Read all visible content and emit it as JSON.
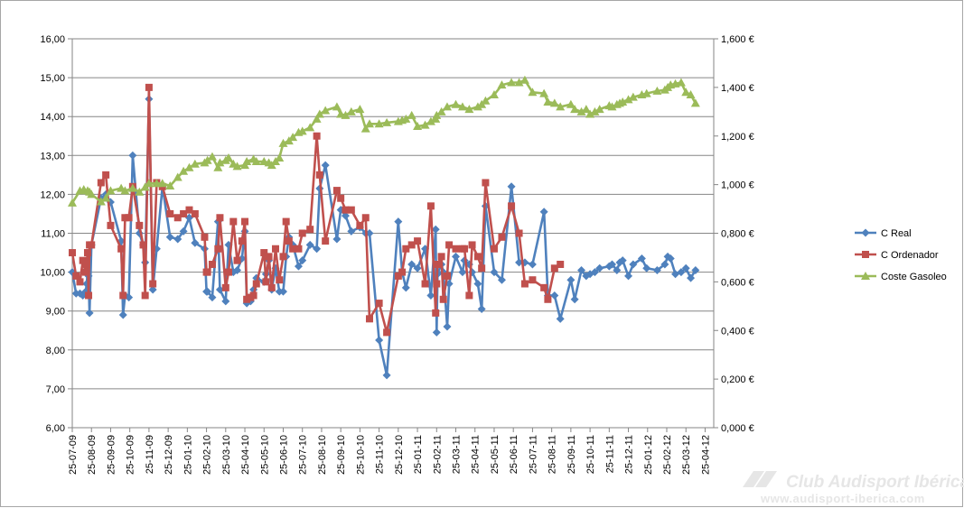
{
  "chart_data": {
    "type": "line",
    "title": "",
    "xlabel": "",
    "ylabel": "",
    "ylim": [
      6,
      16
    ],
    "y_ticks": [
      "6,00",
      "7,00",
      "8,00",
      "9,00",
      "10,00",
      "11,00",
      "12,00",
      "13,00",
      "14,00",
      "15,00",
      "16,00"
    ],
    "y2lim": [
      0,
      1.6
    ],
    "y2_ticks": [
      "0,000 €",
      "0,200 €",
      "0,400 €",
      "0,600 €",
      "0,800 €",
      "1,000 €",
      "1,200 €",
      "1,400 €",
      "1,600 €"
    ],
    "x_ticks": [
      "25-07-09",
      "25-08-09",
      "25-09-09",
      "25-10-09",
      "25-11-09",
      "25-12-09",
      "25-01-10",
      "25-02-10",
      "25-03-10",
      "25-04-10",
      "25-05-10",
      "25-06-10",
      "25-07-10",
      "25-08-10",
      "25-09-10",
      "25-10-10",
      "25-11-10",
      "25-12-10",
      "25-01-11",
      "25-02-11",
      "25-03-11",
      "25-04-11",
      "25-05-11",
      "25-06-11",
      "25-07-11",
      "25-08-11",
      "25-09-11",
      "25-10-11",
      "25-11-11",
      "25-12-11",
      "25-01-12",
      "25-02-12",
      "25-03-12",
      "25-04-12"
    ],
    "x_range": [
      0,
      33.45
    ],
    "grid": "horizontal",
    "legend_position": "right",
    "series": [
      {
        "name": "C Real",
        "axis": "left",
        "color": "#4f81bd",
        "marker": "diamond",
        "x": [
          0.0,
          0.2,
          0.4,
          0.55,
          0.7,
          0.75,
          0.8,
          0.85,
          0.9,
          1.0,
          1.5,
          1.75,
          2.0,
          2.55,
          2.65,
          2.75,
          2.95,
          3.15,
          3.5,
          3.7,
          3.8,
          4.0,
          4.2,
          4.4,
          4.7,
          5.1,
          5.5,
          5.8,
          6.1,
          6.4,
          6.9,
          7.0,
          7.05,
          7.3,
          7.6,
          7.7,
          8.0,
          8.15,
          8.4,
          8.6,
          8.85,
          9.0,
          9.1,
          9.3,
          9.45,
          9.6,
          10.0,
          10.1,
          10.25,
          10.4,
          10.6,
          10.8,
          11.0,
          11.15,
          11.3,
          11.5,
          11.8,
          12.0,
          12.4,
          12.75,
          12.9,
          13.2,
          13.8,
          14.0,
          14.25,
          14.55,
          15.0,
          15.3,
          15.5,
          16.0,
          16.4,
          17.0,
          17.2,
          17.4,
          17.7,
          18.0,
          18.4,
          18.7,
          18.95,
          19.0,
          19.05,
          19.25,
          19.35,
          19.55,
          19.65,
          20.0,
          20.35,
          20.45,
          20.7,
          20.85,
          21.15,
          21.35,
          21.55,
          22.0,
          22.4,
          22.9,
          23.3,
          23.6,
          24.0,
          24.6,
          24.8,
          25.15,
          25.45,
          26.0,
          26.2,
          26.55,
          26.8,
          27.0,
          27.25,
          27.5,
          28.0,
          28.15,
          28.4,
          28.55,
          28.7,
          29.0,
          29.25,
          29.7,
          29.95,
          30.5,
          30.9,
          31.05,
          31.2,
          31.45,
          31.75,
          32.0,
          32.25,
          32.5
        ],
        "y": [
          10.0,
          9.45,
          9.45,
          9.4,
          9.5,
          9.7,
          10.0,
          9.9,
          8.95,
          10.7,
          11.9,
          12.0,
          11.8,
          10.8,
          8.9,
          9.4,
          9.35,
          13.0,
          11.0,
          10.7,
          10.25,
          14.45,
          9.55,
          10.6,
          12.2,
          10.9,
          10.85,
          11.05,
          11.4,
          10.75,
          10.6,
          9.5,
          9.5,
          9.35,
          11.3,
          9.55,
          9.25,
          10.7,
          10.0,
          10.05,
          10.35,
          11.05,
          9.2,
          9.25,
          9.55,
          9.85,
          9.75,
          9.95,
          10.3,
          9.55,
          10.1,
          9.5,
          9.5,
          10.4,
          10.9,
          10.7,
          10.15,
          10.3,
          10.7,
          10.6,
          12.15,
          12.75,
          10.85,
          11.6,
          11.45,
          11.05,
          11.15,
          11.0,
          11.0,
          8.25,
          7.35,
          11.3,
          10.0,
          9.6,
          10.2,
          10.1,
          10.6,
          9.4,
          11.1,
          8.45,
          9.95,
          10.2,
          10.0,
          8.6,
          9.7,
          10.4,
          10.0,
          10.3,
          10.2,
          10.0,
          9.7,
          9.05,
          11.7,
          10.0,
          9.8,
          12.2,
          10.25,
          10.25,
          10.2,
          11.55,
          9.4,
          9.4,
          8.8,
          9.8,
          9.3,
          10.05,
          9.9,
          9.95,
          10.0,
          10.1,
          10.15,
          10.2,
          10.05,
          10.25,
          10.3,
          9.9,
          10.2,
          10.35,
          10.1,
          10.05,
          10.2,
          10.4,
          10.35,
          9.95,
          10.0,
          10.1,
          9.85,
          10.05
        ]
      },
      {
        "name": "C Ordenador",
        "axis": "left",
        "color": "#c0504d",
        "marker": "square",
        "x": [
          0.0,
          0.2,
          0.4,
          0.55,
          0.7,
          0.75,
          0.8,
          0.85,
          0.9,
          1.0,
          1.5,
          1.75,
          2.0,
          2.55,
          2.65,
          2.75,
          2.95,
          3.15,
          3.5,
          3.7,
          3.8,
          4.0,
          4.2,
          4.4,
          4.7,
          5.1,
          5.5,
          5.8,
          6.1,
          6.4,
          6.9,
          7.0,
          7.05,
          7.3,
          7.6,
          7.7,
          8.0,
          8.15,
          8.4,
          8.6,
          8.85,
          9.0,
          9.1,
          9.3,
          9.45,
          9.6,
          10.0,
          10.1,
          10.25,
          10.4,
          10.6,
          10.8,
          11.0,
          11.15,
          11.3,
          11.5,
          11.8,
          12.0,
          12.4,
          12.75,
          12.9,
          13.2,
          13.8,
          14.0,
          14.25,
          14.55,
          15.0,
          15.3,
          15.5,
          16.0,
          16.4,
          17.0,
          17.2,
          17.4,
          17.7,
          18.0,
          18.4,
          18.7,
          18.95,
          19.0,
          19.05,
          19.25,
          19.35,
          19.55,
          19.65,
          20.0,
          20.35,
          20.45,
          20.7,
          20.85,
          21.15,
          21.35,
          21.55,
          22.0,
          22.4,
          22.9,
          23.3,
          23.6,
          24.0,
          24.6,
          24.8,
          25.15,
          25.45
        ],
        "y": [
          10.5,
          9.9,
          9.75,
          10.3,
          10.0,
          10.2,
          10.5,
          9.4,
          10.7,
          10.7,
          12.3,
          12.5,
          11.2,
          10.6,
          9.4,
          11.4,
          11.4,
          12.2,
          11.2,
          10.7,
          9.4,
          14.75,
          9.7,
          12.3,
          12.2,
          11.5,
          11.4,
          11.5,
          11.6,
          11.5,
          10.9,
          10.0,
          10.0,
          10.2,
          10.6,
          11.4,
          9.6,
          10.0,
          11.3,
          10.3,
          10.8,
          11.3,
          9.3,
          9.35,
          9.4,
          9.7,
          10.5,
          9.75,
          10.4,
          9.6,
          10.6,
          9.8,
          10.4,
          11.3,
          10.8,
          10.6,
          10.6,
          11.0,
          11.1,
          13.5,
          12.5,
          10.8,
          12.1,
          11.9,
          11.6,
          11.6,
          11.2,
          11.4,
          8.8,
          9.2,
          8.45,
          9.9,
          10.0,
          10.6,
          10.7,
          10.8,
          9.7,
          11.7,
          8.95,
          9.7,
          10.2,
          10.4,
          9.3,
          9.9,
          10.7,
          10.6,
          10.6,
          10.6,
          9.4,
          10.7,
          10.4,
          10.1,
          12.3,
          10.6,
          10.9,
          11.7,
          11.0,
          9.7,
          9.8,
          9.6,
          9.3,
          10.1,
          10.2
        ]
      },
      {
        "name": "Coste Gasoleo",
        "axis": "right",
        "color": "#9bbb59",
        "marker": "triangle",
        "x": [
          0.0,
          0.4,
          0.6,
          0.8,
          0.9,
          1.0,
          1.5,
          1.75,
          2.0,
          2.55,
          2.75,
          3.15,
          3.5,
          3.8,
          4.0,
          4.4,
          4.7,
          5.1,
          5.5,
          5.8,
          6.1,
          6.4,
          6.9,
          7.05,
          7.3,
          7.6,
          7.7,
          8.0,
          8.15,
          8.4,
          8.6,
          9.0,
          9.1,
          9.45,
          9.6,
          10.0,
          10.25,
          10.4,
          10.6,
          10.8,
          11.0,
          11.3,
          11.5,
          11.8,
          12.0,
          12.4,
          12.75,
          12.9,
          13.2,
          13.8,
          14.0,
          14.25,
          14.55,
          15.0,
          15.3,
          15.5,
          16.0,
          16.4,
          17.0,
          17.2,
          17.4,
          17.7,
          18.0,
          18.4,
          18.7,
          18.95,
          19.0,
          19.25,
          19.55,
          20.0,
          20.35,
          20.7,
          21.15,
          21.35,
          21.55,
          22.0,
          22.4,
          22.9,
          23.3,
          23.6,
          24.0,
          24.6,
          24.8,
          25.15,
          25.45,
          26.0,
          26.2,
          26.55,
          26.8,
          27.0,
          27.25,
          27.5,
          28.0,
          28.15,
          28.4,
          28.55,
          28.7,
          29.0,
          29.25,
          29.7,
          29.95,
          30.5,
          30.9,
          31.05,
          31.2,
          31.45,
          31.75,
          32.0,
          32.25,
          32.5
        ],
        "y": [
          0.925,
          0.975,
          0.98,
          0.975,
          0.97,
          0.96,
          0.93,
          0.945,
          0.975,
          0.985,
          0.975,
          0.985,
          0.97,
          0.99,
          1.005,
          1.005,
          1.005,
          0.995,
          1.03,
          1.055,
          1.07,
          1.085,
          1.09,
          1.1,
          1.115,
          1.07,
          1.09,
          1.1,
          1.11,
          1.085,
          1.075,
          1.08,
          1.095,
          1.105,
          1.095,
          1.095,
          1.09,
          1.08,
          1.095,
          1.11,
          1.17,
          1.18,
          1.195,
          1.215,
          1.22,
          1.235,
          1.27,
          1.29,
          1.305,
          1.32,
          1.29,
          1.285,
          1.3,
          1.31,
          1.23,
          1.25,
          1.25,
          1.255,
          1.26,
          1.265,
          1.27,
          1.285,
          1.24,
          1.245,
          1.26,
          1.27,
          1.285,
          1.3,
          1.32,
          1.33,
          1.32,
          1.31,
          1.32,
          1.33,
          1.345,
          1.37,
          1.41,
          1.42,
          1.42,
          1.43,
          1.38,
          1.375,
          1.34,
          1.335,
          1.32,
          1.33,
          1.31,
          1.3,
          1.31,
          1.29,
          1.3,
          1.31,
          1.325,
          1.32,
          1.33,
          1.335,
          1.34,
          1.35,
          1.36,
          1.37,
          1.375,
          1.385,
          1.39,
          1.4,
          1.41,
          1.415,
          1.42,
          1.38,
          1.37,
          1.335
        ]
      }
    ]
  },
  "watermark": {
    "line1": "Club Audisport Ibérica",
    "line2": "www.audisport-iberica.com"
  },
  "colors": {
    "grid": "#868686",
    "axis": "#868686",
    "border": "#a6a6a6",
    "watermark": "#e6e6e6"
  }
}
